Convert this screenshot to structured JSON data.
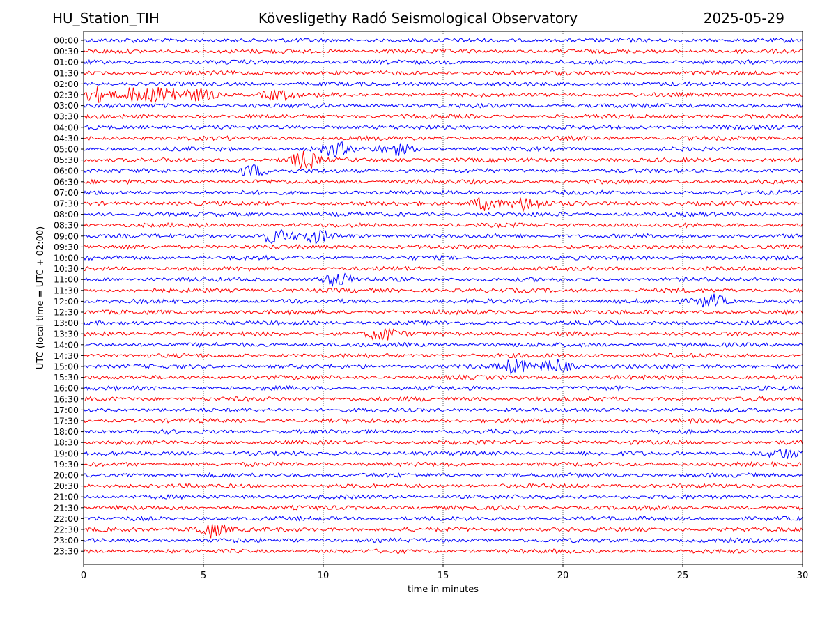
{
  "header": {
    "station": "HU_Station_TIH",
    "title": "Kövesligethy Radó Seismological Observatory",
    "date": "2025-05-29"
  },
  "chart_data": {
    "type": "line",
    "title": "Kövesligethy Radó Seismological Observatory",
    "xlabel": "time in minutes",
    "ylabel": "UTC (local time = UTC + 02:00)",
    "xlim": [
      0,
      30
    ],
    "x_ticks": [
      0,
      5,
      10,
      15,
      20,
      25,
      30
    ],
    "grid": true,
    "rows": [
      "00:00",
      "00:30",
      "01:00",
      "01:30",
      "02:00",
      "02:30",
      "03:00",
      "03:30",
      "04:00",
      "04:30",
      "05:00",
      "05:30",
      "06:00",
      "06:30",
      "07:00",
      "07:30",
      "08:00",
      "08:30",
      "09:00",
      "09:30",
      "10:00",
      "10:30",
      "11:00",
      "11:30",
      "12:00",
      "12:30",
      "13:00",
      "13:30",
      "14:00",
      "14:30",
      "15:00",
      "15:30",
      "16:00",
      "16:30",
      "17:00",
      "17:30",
      "18:00",
      "18:30",
      "19:00",
      "19:30",
      "20:00",
      "20:30",
      "21:00",
      "21:30",
      "22:00",
      "22:30",
      "23:00",
      "23:30"
    ],
    "series_colors": [
      "#0000ff",
      "#ff0000"
    ],
    "events": [
      {
        "row": "02:30",
        "x": 0.6,
        "amp": 10
      },
      {
        "row": "02:30",
        "x": 2.2,
        "amp": 10
      },
      {
        "row": "02:30",
        "x": 3.5,
        "amp": 12
      },
      {
        "row": "02:30",
        "x": 4.9,
        "amp": 8
      },
      {
        "row": "02:30",
        "x": 8.1,
        "amp": 7
      },
      {
        "row": "05:00",
        "x": 10.5,
        "amp": 9
      },
      {
        "row": "05:00",
        "x": 13.0,
        "amp": 8
      },
      {
        "row": "05:30",
        "x": 9.2,
        "amp": 11
      },
      {
        "row": "06:00",
        "x": 7.0,
        "amp": 8
      },
      {
        "row": "07:30",
        "x": 16.8,
        "amp": 9
      },
      {
        "row": "07:30",
        "x": 18.5,
        "amp": 9
      },
      {
        "row": "09:00",
        "x": 8.0,
        "amp": 9
      },
      {
        "row": "09:00",
        "x": 9.7,
        "amp": 8
      },
      {
        "row": "11:00",
        "x": 10.6,
        "amp": 9
      },
      {
        "row": "12:00",
        "x": 26.2,
        "amp": 9
      },
      {
        "row": "13:30",
        "x": 12.5,
        "amp": 9
      },
      {
        "row": "15:00",
        "x": 18.0,
        "amp": 9
      },
      {
        "row": "15:00",
        "x": 19.7,
        "amp": 10
      },
      {
        "row": "19:00",
        "x": 29.2,
        "amp": 6
      },
      {
        "row": "22:30",
        "x": 5.3,
        "amp": 10
      }
    ]
  }
}
